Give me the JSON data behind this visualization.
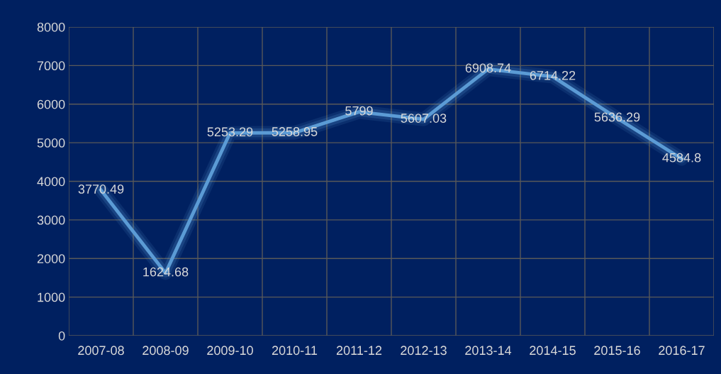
{
  "chart_data": {
    "type": "line",
    "categories": [
      "2007-08",
      "2008-09",
      "2009-10",
      "2010-11",
      "2011-12",
      "2012-13",
      "2013-14",
      "2014-15",
      "2015-16",
      "2016-17"
    ],
    "series": [
      {
        "color": "#5b9bd5",
        "values": [
          3770.49,
          1624.68,
          5253.29,
          5258.95,
          5799,
          5607.03,
          6908.74,
          6714.22,
          5636.29,
          4584.8
        ]
      }
    ],
    "ylim": [
      0,
      8000
    ],
    "yticks": [
      0,
      1000,
      2000,
      3000,
      4000,
      5000,
      6000,
      7000,
      8000
    ],
    "grid": true,
    "data_labels": true,
    "marker": "none",
    "line_style": "solid"
  }
}
